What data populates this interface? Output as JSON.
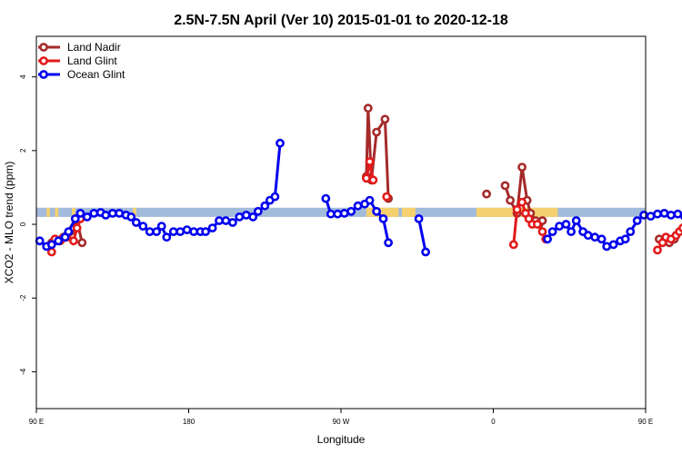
{
  "chart_data": {
    "type": "line",
    "title": "2.5N-7.5N April (Ver 10)   2015-01-01 to 2020-12-18",
    "xlabel": "Longitude",
    "ylabel": "XCO2 - MLO trend (ppm)",
    "xlim": [
      90,
      450
    ],
    "ylim": [
      -5,
      5.1
    ],
    "x_ticks": [
      {
        "value": 90,
        "label": "90 E"
      },
      {
        "value": 180,
        "label": "180"
      },
      {
        "value": 270,
        "label": "90 W"
      },
      {
        "value": 360,
        "label": "0"
      },
      {
        "value": 450,
        "label": "90 E"
      },
      {
        "value": 540,
        "label": "180"
      }
    ],
    "y_ticks": [
      {
        "value": -4,
        "label": "-4"
      },
      {
        "value": -2,
        "label": "-2"
      },
      {
        "value": 0,
        "label": "0"
      },
      {
        "value": 2,
        "label": "2"
      },
      {
        "value": 4,
        "label": "4"
      }
    ],
    "legend_position": "top-left",
    "grid": false,
    "band": {
      "y_low": 0.2,
      "y_high": 0.45,
      "ocean_color": "#a3bbdb",
      "land_color": "#f5d06f"
    },
    "land_ranges": [
      [
        96,
        98
      ],
      [
        101,
        103
      ],
      [
        111,
        113
      ],
      [
        147,
        149
      ],
      [
        285,
        304
      ],
      [
        306,
        314
      ],
      [
        350,
        398
      ],
      [
        454,
        457
      ],
      [
        473,
        478
      ],
      [
        482,
        486
      ]
    ],
    "series": [
      {
        "name": "Land Nadir",
        "color": "#a52a2a",
        "segments": [
          [
            [
              99,
              -0.5
            ],
            [
              101,
              -0.4
            ],
            [
              104,
              -0.45
            ],
            [
              106,
              -0.35
            ],
            [
              108,
              -0.3
            ],
            [
              110,
              -0.2
            ],
            [
              112,
              -0.1
            ],
            [
              114,
              0.1
            ],
            [
              117,
              -0.5
            ]
          ],
          [
            [
              285,
              1.3
            ],
            [
              286,
              3.15
            ],
            [
              288,
              1.2
            ],
            [
              291,
              2.5
            ],
            [
              296,
              2.85
            ],
            [
              298,
              0.7
            ]
          ],
          [
            [
              356,
              0.82
            ]
          ],
          [
            [
              367,
              1.05
            ],
            [
              370,
              0.65
            ],
            [
              374,
              0.3
            ],
            [
              377,
              1.55
            ],
            [
              380,
              0.65
            ],
            [
              382,
              0.3
            ],
            [
              385,
              0.1
            ],
            [
              387,
              0.0
            ],
            [
              389,
              0.1
            ]
          ],
          [
            [
              458,
              -0.4
            ],
            [
              461,
              -0.45
            ],
            [
              464,
              -0.5
            ],
            [
              467,
              -0.4
            ]
          ],
          [
            [
              482,
              -0.35
            ],
            [
              485,
              -0.2
            ],
            [
              488,
              -0.1
            ],
            [
              491,
              0.0
            ],
            [
              494,
              -0.5
            ]
          ]
        ]
      },
      {
        "name": "Land Glint",
        "color": "#e31a1c",
        "segments": [
          [
            [
              99,
              -0.75
            ],
            [
              101,
              -0.4
            ],
            [
              105,
              -0.4
            ],
            [
              108,
              -0.35
            ],
            [
              112,
              -0.45
            ],
            [
              114,
              -0.1
            ],
            [
              116,
              0.15
            ]
          ],
          [
            [
              285,
              1.25
            ],
            [
              287,
              1.7
            ],
            [
              289,
              1.2
            ]
          ],
          [
            [
              297,
              0.75
            ]
          ],
          [
            [
              372,
              -0.55
            ],
            [
              374,
              0.4
            ],
            [
              377,
              0.6
            ],
            [
              379,
              0.3
            ],
            [
              381,
              0.15
            ],
            [
              383,
              0.0
            ],
            [
              386,
              0.0
            ],
            [
              389,
              -0.2
            ],
            [
              391,
              -0.4
            ]
          ],
          [
            [
              457,
              -0.7
            ],
            [
              460,
              -0.5
            ],
            [
              462,
              -0.35
            ],
            [
              465,
              -0.4
            ],
            [
              468,
              -0.3
            ],
            [
              470,
              -0.2
            ],
            [
              472,
              -0.1
            ],
            [
              476,
              -0.4
            ],
            [
              479,
              -0.5
            ],
            [
              481,
              -0.1
            ],
            [
              483,
              0.1
            ],
            [
              486,
              -0.1
            ],
            [
              488,
              0.0
            ],
            [
              490,
              0.1
            ]
          ]
        ]
      },
      {
        "name": "Ocean Glint",
        "color": "#0000ee",
        "segments": [
          [
            [
              92,
              -0.45
            ],
            [
              96,
              -0.6
            ],
            [
              99,
              -0.55
            ],
            [
              103,
              -0.45
            ],
            [
              107,
              -0.35
            ],
            [
              109,
              -0.2
            ],
            [
              113,
              0.15
            ],
            [
              116,
              0.3
            ],
            [
              120,
              0.2
            ],
            [
              124,
              0.3
            ],
            [
              128,
              0.32
            ],
            [
              131,
              0.25
            ],
            [
              135,
              0.3
            ],
            [
              139,
              0.3
            ],
            [
              143,
              0.25
            ],
            [
              146,
              0.2
            ],
            [
              149,
              0.05
            ],
            [
              153,
              -0.05
            ],
            [
              157,
              -0.2
            ],
            [
              161,
              -0.2
            ],
            [
              164,
              -0.05
            ],
            [
              167,
              -0.35
            ],
            [
              171,
              -0.2
            ],
            [
              175,
              -0.2
            ],
            [
              179,
              -0.15
            ],
            [
              183,
              -0.2
            ],
            [
              187,
              -0.2
            ],
            [
              190,
              -0.2
            ],
            [
              194,
              -0.1
            ],
            [
              198,
              0.1
            ],
            [
              202,
              0.1
            ],
            [
              206,
              0.05
            ],
            [
              210,
              0.2
            ],
            [
              214,
              0.25
            ],
            [
              218,
              0.2
            ],
            [
              221,
              0.35
            ],
            [
              225,
              0.5
            ],
            [
              228,
              0.65
            ],
            [
              231,
              0.75
            ],
            [
              234,
              2.2
            ]
          ],
          [
            [
              261,
              0.7
            ],
            [
              264,
              0.28
            ],
            [
              268,
              0.28
            ],
            [
              272,
              0.3
            ],
            [
              276,
              0.35
            ],
            [
              280,
              0.5
            ],
            [
              284,
              0.55
            ],
            [
              287,
              0.65
            ],
            [
              291,
              0.35
            ],
            [
              295,
              0.15
            ],
            [
              298,
              -0.5
            ]
          ],
          [
            [
              316,
              0.15
            ],
            [
              320,
              -0.75
            ]
          ],
          [
            [
              392,
              -0.4
            ],
            [
              395,
              -0.2
            ],
            [
              399,
              -0.05
            ],
            [
              403,
              0.0
            ],
            [
              406,
              -0.2
            ],
            [
              409,
              0.1
            ],
            [
              413,
              -0.2
            ],
            [
              416,
              -0.3
            ],
            [
              420,
              -0.35
            ],
            [
              424,
              -0.4
            ],
            [
              427,
              -0.6
            ],
            [
              431,
              -0.55
            ],
            [
              435,
              -0.45
            ],
            [
              438,
              -0.4
            ],
            [
              441,
              -0.2
            ],
            [
              445,
              0.1
            ],
            [
              449,
              0.25
            ],
            [
              453,
              0.22
            ],
            [
              457,
              0.28
            ],
            [
              461,
              0.3
            ],
            [
              465,
              0.25
            ],
            [
              469,
              0.28
            ],
            [
              473,
              0.22
            ],
            [
              477,
              0.15
            ],
            [
              481,
              0.0
            ],
            [
              485,
              -0.2
            ]
          ]
        ]
      }
    ]
  }
}
